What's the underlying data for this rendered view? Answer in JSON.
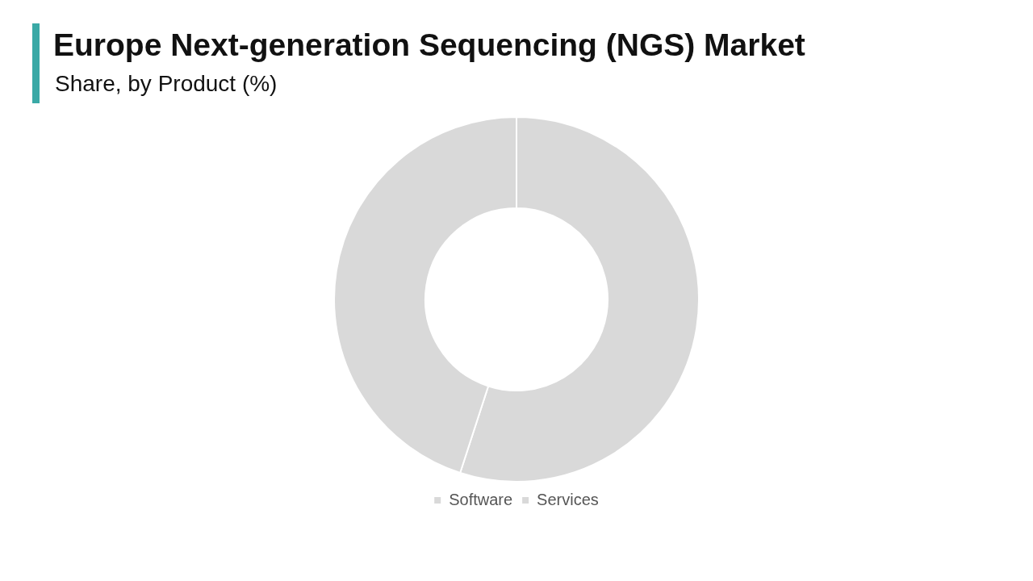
{
  "chart_data": {
    "type": "donut",
    "title": "Europe Next-generation Sequencing (NGS) Market",
    "subtitle": "Share, by Product (%)",
    "categories": [
      "Software",
      "Services"
    ],
    "values": [
      55,
      45
    ],
    "colors": [
      "#d9d9d9",
      "#d9d9d9"
    ],
    "legend": "bottom"
  }
}
